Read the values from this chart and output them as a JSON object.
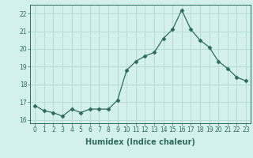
{
  "x": [
    0,
    1,
    2,
    3,
    4,
    5,
    6,
    7,
    8,
    9,
    10,
    11,
    12,
    13,
    14,
    15,
    16,
    17,
    18,
    19,
    20,
    21,
    22,
    23
  ],
  "y": [
    16.8,
    16.5,
    16.4,
    16.2,
    16.6,
    16.4,
    16.6,
    16.6,
    16.6,
    17.1,
    18.8,
    19.3,
    19.6,
    19.8,
    20.6,
    21.1,
    22.2,
    21.1,
    20.5,
    20.1,
    19.3,
    18.9,
    18.4,
    18.2
  ],
  "line_color": "#2e6b5e",
  "marker": "D",
  "marker_size": 2.5,
  "bg_color": "#d4f0ec",
  "grid_color": "#b8dbd6",
  "xlabel": "Humidex (Indice chaleur)",
  "ylim": [
    15.8,
    22.5
  ],
  "xlim": [
    -0.5,
    23.5
  ],
  "yticks": [
    16,
    17,
    18,
    19,
    20,
    21,
    22
  ],
  "xticks": [
    0,
    1,
    2,
    3,
    4,
    5,
    6,
    7,
    8,
    9,
    10,
    11,
    12,
    13,
    14,
    15,
    16,
    17,
    18,
    19,
    20,
    21,
    22,
    23
  ],
  "tick_color": "#2e6b5e",
  "xlabel_fontsize": 7,
  "tick_fontsize": 5.5
}
